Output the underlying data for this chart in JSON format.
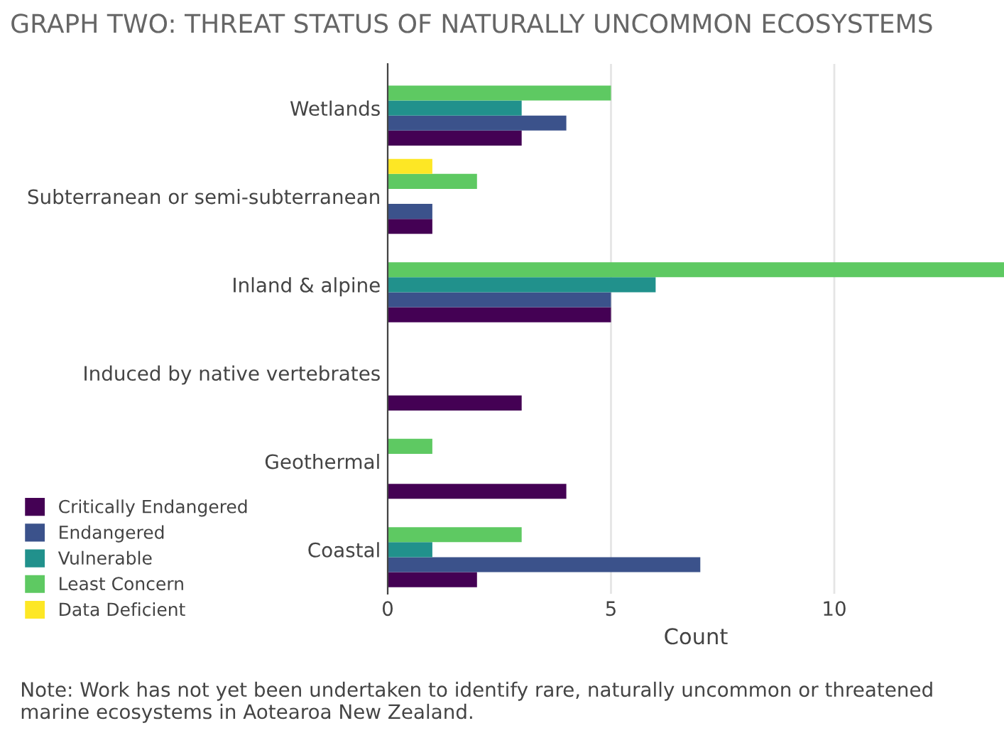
{
  "chart_data": {
    "type": "bar",
    "orientation": "horizontal",
    "title": "GRAPH TWO: THREAT STATUS OF NATURALLY UNCOMMON ECOSYSTEMS",
    "xlabel": "Count",
    "categories": [
      "Wetlands",
      "Subterranean or semi-subterranean",
      "Inland & alpine",
      "Induced by native vertebrates",
      "Geothermal",
      "Coastal"
    ],
    "series": [
      {
        "name": "Critically Endangered",
        "color": "#440154",
        "values": [
          3,
          1,
          5,
          3,
          4,
          2
        ]
      },
      {
        "name": "Endangered",
        "color": "#3b528b",
        "values": [
          4,
          1,
          5,
          null,
          null,
          7
        ]
      },
      {
        "name": "Vulnerable",
        "color": "#21918c",
        "values": [
          3,
          null,
          6,
          null,
          null,
          1
        ]
      },
      {
        "name": "Least Concern",
        "color": "#5ec962",
        "values": [
          5,
          2,
          13.8,
          null,
          1,
          3
        ]
      },
      {
        "name": "Data Deficient",
        "color": "#fde725",
        "values": [
          null,
          1,
          null,
          null,
          null,
          null
        ]
      }
    ],
    "xlim": [
      0,
      13.8
    ],
    "xticks": [
      0,
      5,
      10
    ],
    "grid": "x",
    "legend": "bottom left",
    "annotations": [
      "Note: Work has not yet been undertaken to identify rare, naturally uncommon or threatened marine ecosystems in Aotearoa New Zealand."
    ]
  }
}
